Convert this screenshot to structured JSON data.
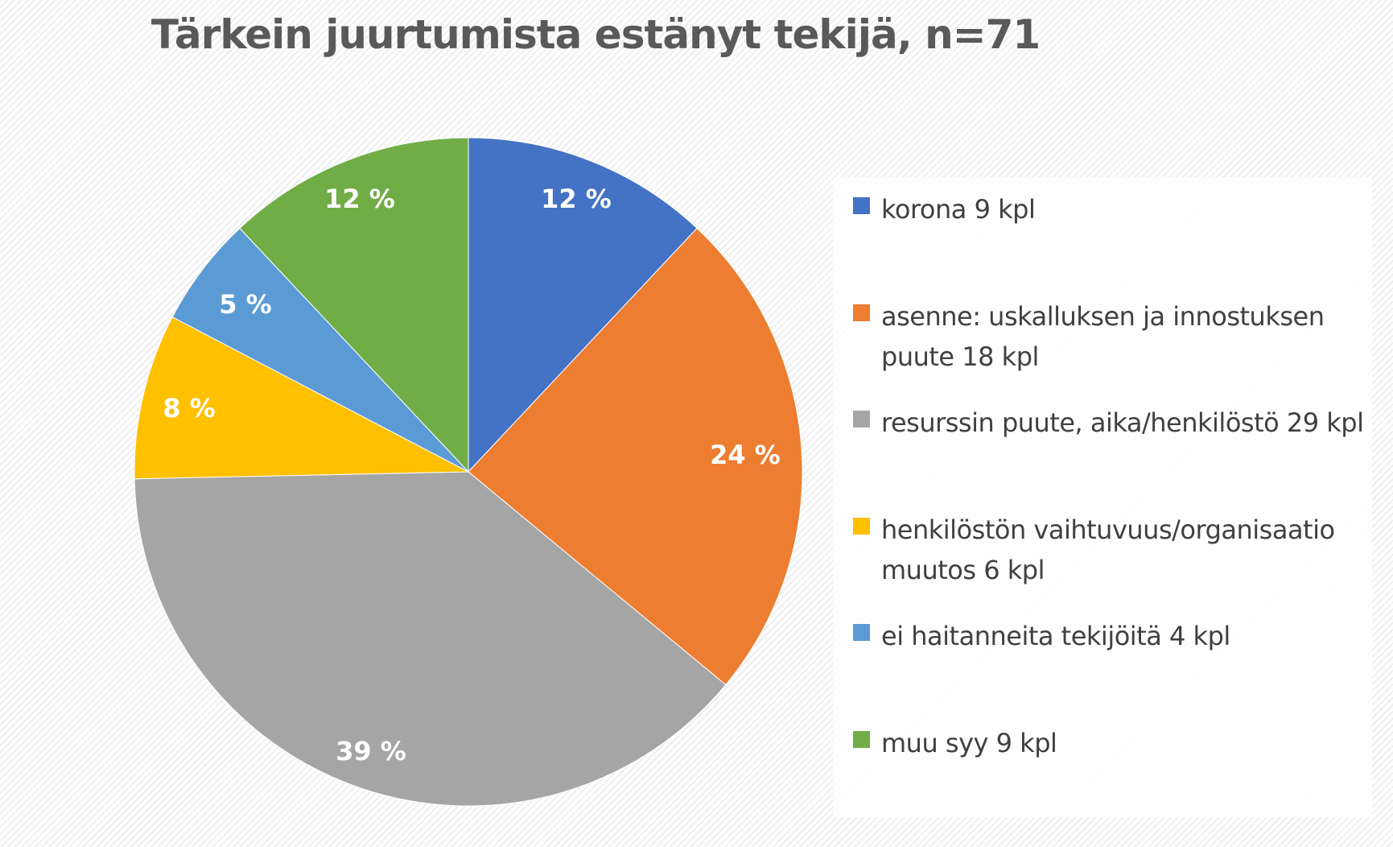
{
  "chart_data": {
    "type": "pie",
    "title": "Tärkein juurtumista estänyt tekijä, n=71",
    "categories": [
      "korona 9 kpl",
      "asenne: uskalluksen ja innostuksen puute 18 kpl",
      "resurssin puute, aika/henkilöstö 29 kpl",
      "henkilöstön vaihtuvuus/organisaatio muutos 6 kpl",
      "ei haitanneita tekijöitä 4 kpl",
      "muu syy 9 kpl"
    ],
    "values": [
      9,
      18,
      29,
      6,
      4,
      9
    ],
    "percent_labels": [
      "12 %",
      "24 %",
      "39 %",
      "8 %",
      "5 %",
      "12 %"
    ],
    "colors": [
      "#4472c4",
      "#ed7d31",
      "#a5a5a5",
      "#ffc000",
      "#5b9bd5",
      "#70ad47"
    ],
    "legend_position": "right",
    "start_angle": "12 o'clock, clockwise"
  },
  "title": "Tärkein juurtumista estänyt tekijä, n=71",
  "legend": {
    "items": [
      {
        "label": "korona 9 kpl",
        "color": "#4472c4"
      },
      {
        "label": "asenne: uskalluksen ja innostuksen puute 18 kpl",
        "color": "#ed7d31"
      },
      {
        "label": "resurssin puute, aika/henkilöstö 29 kpl",
        "color": "#a5a5a5"
      },
      {
        "label": "henkilöstön vaihtuvuus/organisaatio muutos 6 kpl",
        "color": "#ffc000"
      },
      {
        "label": "ei haitanneita tekijöitä 4 kpl",
        "color": "#5b9bd5"
      },
      {
        "label": "muu syy 9 kpl",
        "color": "#70ad47"
      }
    ]
  },
  "pie_labels": [
    "12 %",
    "24 %",
    "39 %",
    "8 %",
    "5 %",
    "12 %"
  ]
}
